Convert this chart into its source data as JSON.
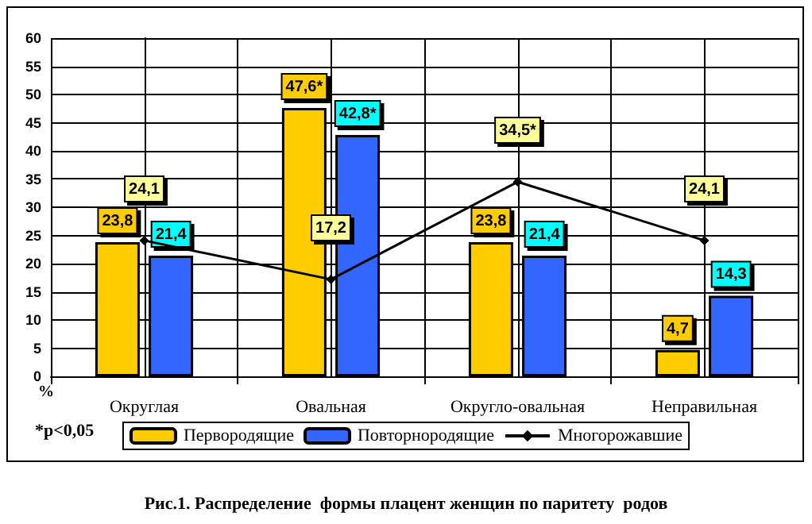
{
  "chart_data": {
    "type": "bar",
    "title": "Рис.1. Распределение  формы плацент женщин по паритету  родов",
    "ylabel": "%",
    "annotations": [
      "*p<0,05"
    ],
    "categories": [
      "Округлая",
      "Овальная",
      "Округло-овальная",
      "Неправильная"
    ],
    "series": [
      {
        "name": "Первородящие",
        "color": "#ffcc00",
        "values": [
          23.8,
          47.6,
          23.8,
          4.7
        ],
        "value_labels": [
          "23,8",
          "47,6*",
          "23,8",
          "4,7"
        ]
      },
      {
        "name": "Повторнородящие",
        "color": "#3366ff",
        "values": [
          21.4,
          42.8,
          21.4,
          14.3
        ],
        "value_labels": [
          "21,4",
          "42,8*",
          "21,4",
          "14,3"
        ]
      },
      {
        "name": "Многорожавшие",
        "type": "line",
        "color": "#000000",
        "marker": "diamond",
        "values": [
          24.1,
          17.2,
          34.5,
          24.1
        ],
        "value_labels": [
          "24,1",
          "17,2",
          "34,5*",
          "24,1"
        ]
      }
    ],
    "ylim": [
      0,
      60
    ],
    "yticks": [
      0,
      5,
      10,
      15,
      20,
      25,
      30,
      35,
      40,
      45,
      50,
      55,
      60
    ],
    "grid": true,
    "legend": "bottom"
  }
}
